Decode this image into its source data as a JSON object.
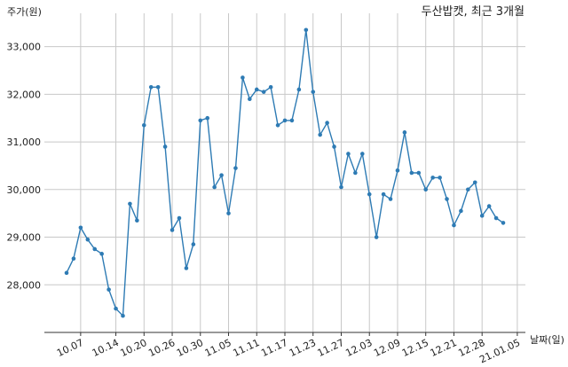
{
  "chart_data": {
    "type": "line",
    "title": "두산밥캣, 최근 3개월",
    "ylabel": "주가(원)",
    "xlabel": "날짜(일)",
    "ylim": [
      27000,
      33700
    ],
    "yticks": [
      28000,
      29000,
      30000,
      31000,
      32000,
      33000
    ],
    "ytick_labels": [
      "28,000",
      "29,000",
      "30,000",
      "31,000",
      "32,000",
      "33,000"
    ],
    "grid": true,
    "color": "#2e7bb4",
    "xtick_labels": [
      "10.07",
      "10.14",
      "10.20",
      "10.26",
      "10.30",
      "11.05",
      "11.11",
      "11.17",
      "11.23",
      "11.27",
      "12.03",
      "12.09",
      "12.15",
      "12.21",
      "12.28",
      "21.01.05"
    ],
    "xtick_index": [
      2,
      7,
      11,
      15,
      19,
      23,
      27,
      31,
      35,
      39,
      43,
      47,
      51,
      55,
      59,
      64
    ],
    "series": [
      {
        "values": [
          28250,
          28550,
          29200,
          28950,
          28750,
          28650,
          27900,
          27500,
          27350,
          29700,
          29350,
          31350,
          32150,
          32150,
          30900,
          29150,
          29400,
          28350,
          28850,
          31450,
          31500,
          30050,
          30300,
          29500,
          30450,
          32350,
          31900,
          32100,
          32050,
          32150,
          31350,
          31450,
          31450,
          32100,
          33350,
          32050,
          31150,
          31400,
          30900,
          30050,
          30750,
          30350,
          30750,
          29900,
          29000,
          29900,
          29800,
          30400,
          31200,
          30350,
          30350,
          30000,
          30250,
          30250,
          29800,
          29250,
          29550,
          30000,
          30150,
          29450,
          29650,
          29400,
          29300
        ]
      }
    ]
  }
}
